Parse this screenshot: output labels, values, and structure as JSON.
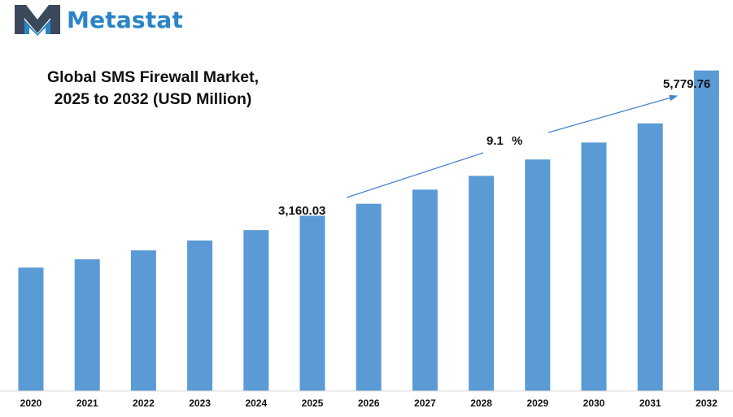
{
  "brand": {
    "name": "Metastat",
    "logo_icon": "metastat-m-logo-icon",
    "color": "#2a84c6"
  },
  "chart_data": {
    "type": "bar",
    "title_line1": "Global SMS Firewall Market,",
    "title_line2": "2025 to 2032 (USD Million)",
    "categories": [
      "2020",
      "2021",
      "2022",
      "2023",
      "2024",
      "2025",
      "2026",
      "2027",
      "2028",
      "2029",
      "2030",
      "2031",
      "2032"
    ],
    "values": [
      2225,
      2375,
      2535,
      2715,
      2900,
      3160.03,
      3375,
      3630,
      3880,
      4175,
      4480,
      4825,
      5779.76
    ],
    "ylim": [
      0,
      6200
    ],
    "grid": false,
    "legend": "none",
    "bar_color": "#5b9bd5",
    "annotations": {
      "start_value": "3,160.03",
      "end_value": "5,779.76",
      "cagr_number": "9.1",
      "cagr_unit": "%"
    }
  }
}
